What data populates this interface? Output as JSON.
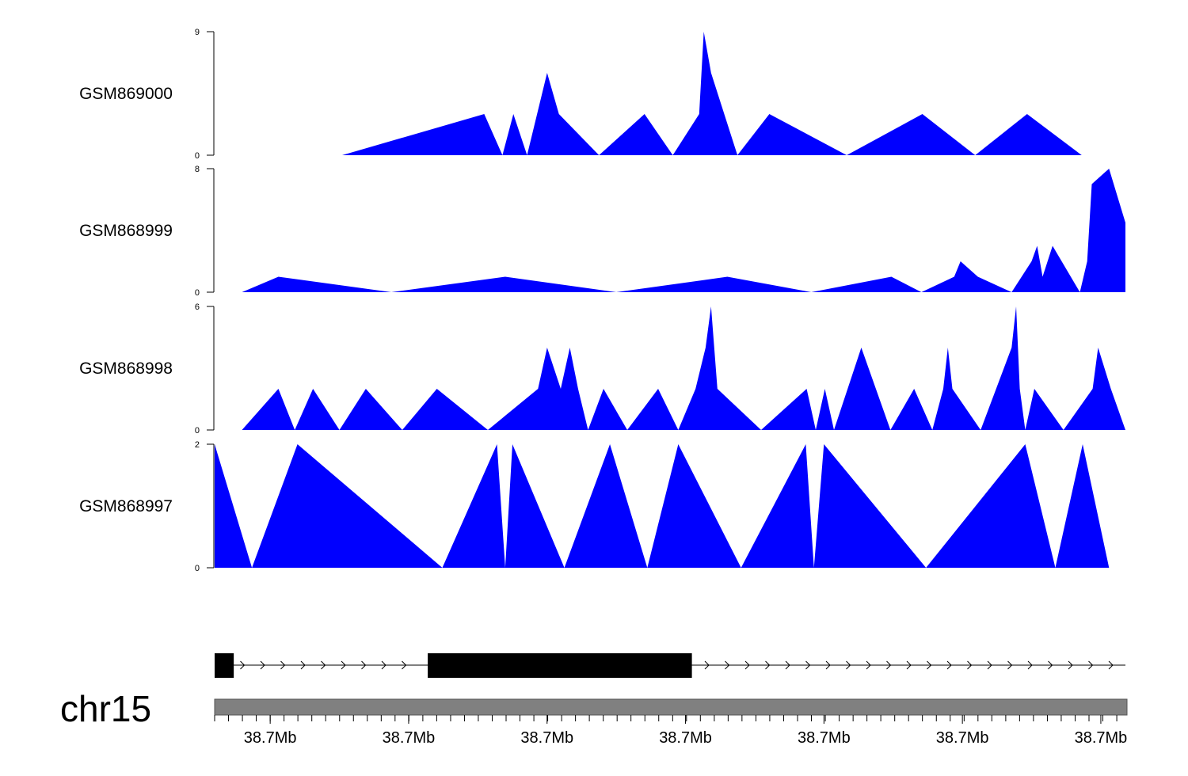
{
  "chart_data": {
    "type": "area",
    "x_range": [
      0.0,
      1.0
    ],
    "tracks": [
      {
        "name": "GSM869000",
        "ylim": [
          0,
          9
        ],
        "yticks": [
          "0",
          "9"
        ],
        "color": "#0000ff",
        "points": [
          [
            0.14,
            0
          ],
          [
            0.296,
            3
          ],
          [
            0.316,
            0
          ],
          [
            0.328,
            3
          ],
          [
            0.343,
            0
          ],
          [
            0.365,
            6
          ],
          [
            0.378,
            3
          ],
          [
            0.422,
            0
          ],
          [
            0.472,
            3
          ],
          [
            0.503,
            0
          ],
          [
            0.532,
            3
          ],
          [
            0.537,
            9
          ],
          [
            0.545,
            6
          ],
          [
            0.574,
            0
          ],
          [
            0.609,
            3
          ],
          [
            0.694,
            0
          ],
          [
            0.777,
            3
          ],
          [
            0.835,
            0
          ],
          [
            0.892,
            3
          ],
          [
            0.952,
            0
          ]
        ]
      },
      {
        "name": "GSM868999",
        "ylim": [
          0,
          8
        ],
        "yticks": [
          "0",
          "8"
        ],
        "color": "#0000ff",
        "points": [
          [
            0.03,
            0
          ],
          [
            0.07,
            1
          ],
          [
            0.194,
            0
          ],
          [
            0.319,
            1
          ],
          [
            0.441,
            0
          ],
          [
            0.563,
            1
          ],
          [
            0.655,
            0
          ],
          [
            0.743,
            1
          ],
          [
            0.776,
            0
          ],
          [
            0.812,
            1
          ],
          [
            0.819,
            2
          ],
          [
            0.838,
            1
          ],
          [
            0.875,
            0
          ],
          [
            0.897,
            2
          ],
          [
            0.903,
            3
          ],
          [
            0.909,
            1
          ],
          [
            0.92,
            3
          ],
          [
            0.95,
            0
          ],
          [
            0.958,
            2
          ],
          [
            0.963,
            7
          ],
          [
            0.982,
            8
          ],
          [
            1.0,
            4.5
          ]
        ]
      },
      {
        "name": "GSM868998",
        "ylim": [
          0,
          6
        ],
        "yticks": [
          "0",
          "6"
        ],
        "color": "#0000ff",
        "points": [
          [
            0.03,
            0
          ],
          [
            0.07,
            2
          ],
          [
            0.088,
            0
          ],
          [
            0.108,
            2
          ],
          [
            0.137,
            0
          ],
          [
            0.166,
            2
          ],
          [
            0.206,
            0
          ],
          [
            0.244,
            2
          ],
          [
            0.3,
            0
          ],
          [
            0.355,
            2
          ],
          [
            0.365,
            4
          ],
          [
            0.38,
            2
          ],
          [
            0.39,
            4
          ],
          [
            0.399,
            2
          ],
          [
            0.41,
            0
          ],
          [
            0.427,
            2
          ],
          [
            0.453,
            0
          ],
          [
            0.487,
            2
          ],
          [
            0.509,
            0
          ],
          [
            0.528,
            2
          ],
          [
            0.539,
            4
          ],
          [
            0.545,
            6
          ],
          [
            0.552,
            2
          ],
          [
            0.6,
            0
          ],
          [
            0.65,
            2
          ],
          [
            0.66,
            0
          ],
          [
            0.67,
            2
          ],
          [
            0.68,
            0
          ],
          [
            0.71,
            4
          ],
          [
            0.742,
            0
          ],
          [
            0.768,
            2
          ],
          [
            0.788,
            0
          ],
          [
            0.8,
            2
          ],
          [
            0.805,
            4
          ],
          [
            0.81,
            2
          ],
          [
            0.841,
            0
          ],
          [
            0.875,
            4
          ],
          [
            0.88,
            6
          ],
          [
            0.884,
            2
          ],
          [
            0.89,
            0
          ],
          [
            0.9,
            2
          ],
          [
            0.932,
            0
          ],
          [
            0.964,
            2
          ],
          [
            0.97,
            4
          ],
          [
            0.984,
            2
          ],
          [
            1.0,
            0
          ]
        ]
      },
      {
        "name": "GSM868997",
        "ylim": [
          0,
          2
        ],
        "yticks": [
          "0",
          "2"
        ],
        "color": "#0000ff",
        "points": [
          [
            0.0,
            2
          ],
          [
            0.041,
            0
          ],
          [
            0.091,
            2
          ],
          [
            0.25,
            0
          ],
          [
            0.31,
            2
          ],
          [
            0.319,
            0
          ],
          [
            0.327,
            2
          ],
          [
            0.384,
            0
          ],
          [
            0.434,
            2
          ],
          [
            0.475,
            0
          ],
          [
            0.509,
            2
          ],
          [
            0.578,
            0
          ],
          [
            0.649,
            2
          ],
          [
            0.658,
            0
          ],
          [
            0.669,
            2
          ],
          [
            0.781,
            0
          ],
          [
            0.89,
            2
          ],
          [
            0.923,
            0
          ],
          [
            0.953,
            2
          ],
          [
            0.982,
            0
          ]
        ]
      }
    ],
    "gene_model": {
      "strand": "+",
      "exons": [
        [
          0.0,
          0.021
        ],
        [
          0.234,
          0.524
        ]
      ],
      "line_end": 1.0
    },
    "chromosome": {
      "label": "chr15",
      "ideogram_color": "#808080"
    },
    "x_axis": {
      "tick_labels": [
        "38.7Mb",
        "38.7Mb",
        "38.7Mb",
        "38.7Mb",
        "38.7Mb",
        "38.7Mb",
        "38.7Mb"
      ],
      "label_positions": [
        0.061,
        0.213,
        0.365,
        0.517,
        0.669,
        0.821,
        0.973
      ],
      "minor_tick_positions": [
        0.0,
        0.0152,
        0.0305,
        0.0457,
        0.061,
        0.0762,
        0.0914,
        0.1067,
        0.1219,
        0.1372,
        0.1524,
        0.1676,
        0.1829,
        0.1981,
        0.2133,
        0.2286,
        0.2438,
        0.2591,
        0.2743,
        0.2895,
        0.3048,
        0.32,
        0.3352,
        0.3505,
        0.3657,
        0.381,
        0.3962,
        0.4114,
        0.4267,
        0.4419,
        0.4571,
        0.4724,
        0.4876,
        0.5029,
        0.5181,
        0.5333,
        0.5486,
        0.5638,
        0.579,
        0.5943,
        0.6095,
        0.6248,
        0.64,
        0.6552,
        0.6705,
        0.6857,
        0.701,
        0.7162,
        0.7314,
        0.7467,
        0.7619,
        0.7771,
        0.7924,
        0.8076,
        0.8229,
        0.8381,
        0.8533,
        0.8686,
        0.8838,
        0.899,
        0.9143,
        0.9295,
        0.9448,
        0.96,
        0.9752,
        0.9905
      ]
    }
  }
}
